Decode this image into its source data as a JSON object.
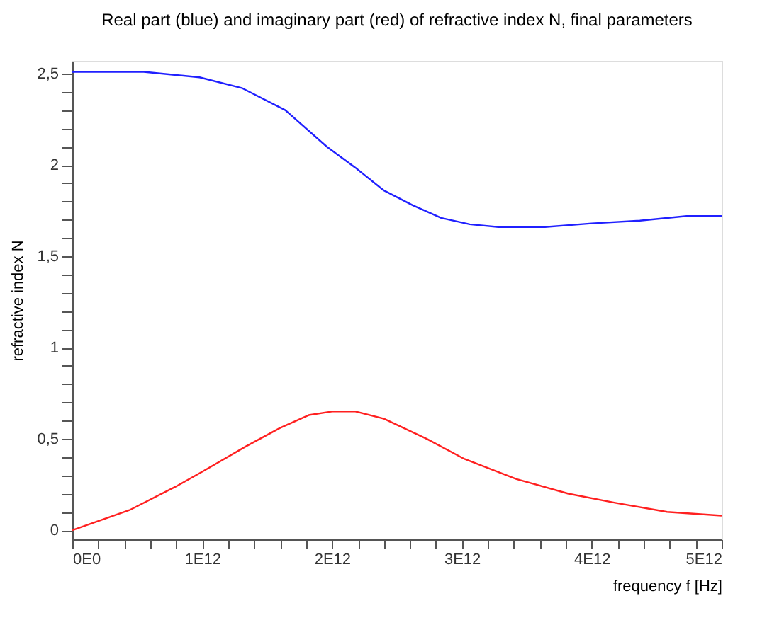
{
  "chart_data": {
    "type": "line",
    "title": "Real part (blue) and imaginary part (red) of refractive index N, final parameters",
    "xlabel": "frequency f [Hz]",
    "ylabel": "refractive index N",
    "series": [
      {
        "color": "#2020ff",
        "x": [
          0,
          550000000000.0,
          980000000000.0,
          1310000000000.0,
          1640000000000.0,
          1960000000000.0,
          2180000000000.0,
          2400000000000.0,
          2620000000000.0,
          2840000000000.0,
          3060000000000.0,
          3280000000000.0,
          3640000000000.0,
          4000000000000.0,
          4370000000000.0,
          4730000000000.0,
          5000000000000.0
        ],
        "values": [
          2.51,
          2.51,
          2.48,
          2.42,
          2.3,
          2.1,
          1.985,
          1.86,
          1.78,
          1.71,
          1.675,
          1.66,
          1.66,
          1.68,
          1.695,
          1.72,
          1.72
        ]
      },
      {
        "color": "#ff2020",
        "x": [
          0,
          440000000000.0,
          800000000000.0,
          1000000000000.0,
          1340000000000.0,
          1600000000000.0,
          1820000000000.0,
          2000000000000.0,
          2180000000000.0,
          2400000000000.0,
          2730000000000.0,
          3020000000000.0,
          3420000000000.0,
          3820000000000.0,
          4180000000000.0,
          4580000000000.0,
          5000000000000.0
        ],
        "values": [
          0,
          0.11,
          0.24,
          0.32,
          0.46,
          0.56,
          0.63,
          0.65,
          0.65,
          0.61,
          0.5,
          0.39,
          0.28,
          0.2,
          0.15,
          0.1,
          0.08
        ]
      }
    ],
    "xlim": [
      0,
      5000000000000.0
    ],
    "ylim": [
      -0.05,
      2.57
    ],
    "xticks": [
      {
        "value": 0,
        "label": "0E0"
      },
      {
        "value": 200000000000.0,
        "label": null
      },
      {
        "value": 400000000000.0,
        "label": null
      },
      {
        "value": 600000000000.0,
        "label": null
      },
      {
        "value": 800000000000.0,
        "label": null
      },
      {
        "value": 1000000000000.0,
        "label": "1E12"
      },
      {
        "value": 1200000000000.0,
        "label": null
      },
      {
        "value": 1400000000000.0,
        "label": null
      },
      {
        "value": 1600000000000.0,
        "label": null
      },
      {
        "value": 1800000000000.0,
        "label": null
      },
      {
        "value": 2000000000000.0,
        "label": "2E12"
      },
      {
        "value": 2200000000000.0,
        "label": null
      },
      {
        "value": 2400000000000.0,
        "label": null
      },
      {
        "value": 2600000000000.0,
        "label": null
      },
      {
        "value": 2800000000000.0,
        "label": null
      },
      {
        "value": 3000000000000.0,
        "label": "3E12"
      },
      {
        "value": 3200000000000.0,
        "label": null
      },
      {
        "value": 3400000000000.0,
        "label": null
      },
      {
        "value": 3600000000000.0,
        "label": null
      },
      {
        "value": 3800000000000.0,
        "label": null
      },
      {
        "value": 4000000000000.0,
        "label": "4E12"
      },
      {
        "value": 4200000000000.0,
        "label": null
      },
      {
        "value": 4400000000000.0,
        "label": null
      },
      {
        "value": 4600000000000.0,
        "label": null
      },
      {
        "value": 4800000000000.0,
        "label": null
      },
      {
        "value": 5000000000000.0,
        "label": "5E12"
      }
    ],
    "yticks": [
      0,
      {
        "value": 0.1,
        "label": null
      },
      {
        "value": 0.2,
        "label": null
      },
      {
        "value": 0.3,
        "label": null
      },
      {
        "value": 0.4,
        "label": null
      },
      {
        "value": 0.5,
        "label": "0,5"
      },
      {
        "value": 0.6,
        "label": null
      },
      {
        "value": 0.7,
        "label": null
      },
      {
        "value": 0.8,
        "label": null
      },
      {
        "value": 0.9,
        "label": null
      },
      1,
      {
        "value": 1.1,
        "label": null
      },
      {
        "value": 1.2,
        "label": null
      },
      {
        "value": 1.3,
        "label": null
      },
      {
        "value": 1.4,
        "label": null
      },
      {
        "value": 1.5,
        "label": "1,5"
      },
      {
        "value": 1.6,
        "label": null
      },
      {
        "value": 1.7,
        "label": null
      },
      {
        "value": 1.8,
        "label": null
      },
      {
        "value": 1.9,
        "label": null
      },
      2,
      {
        "value": 2.1,
        "label": null
      },
      {
        "value": 2.2,
        "label": null
      },
      {
        "value": 2.3,
        "label": null
      },
      {
        "value": 2.4,
        "label": null
      },
      {
        "value": 2.5,
        "label": "2,5"
      }
    ],
    "grid": false,
    "marker": "none",
    "line_style": "solid"
  }
}
